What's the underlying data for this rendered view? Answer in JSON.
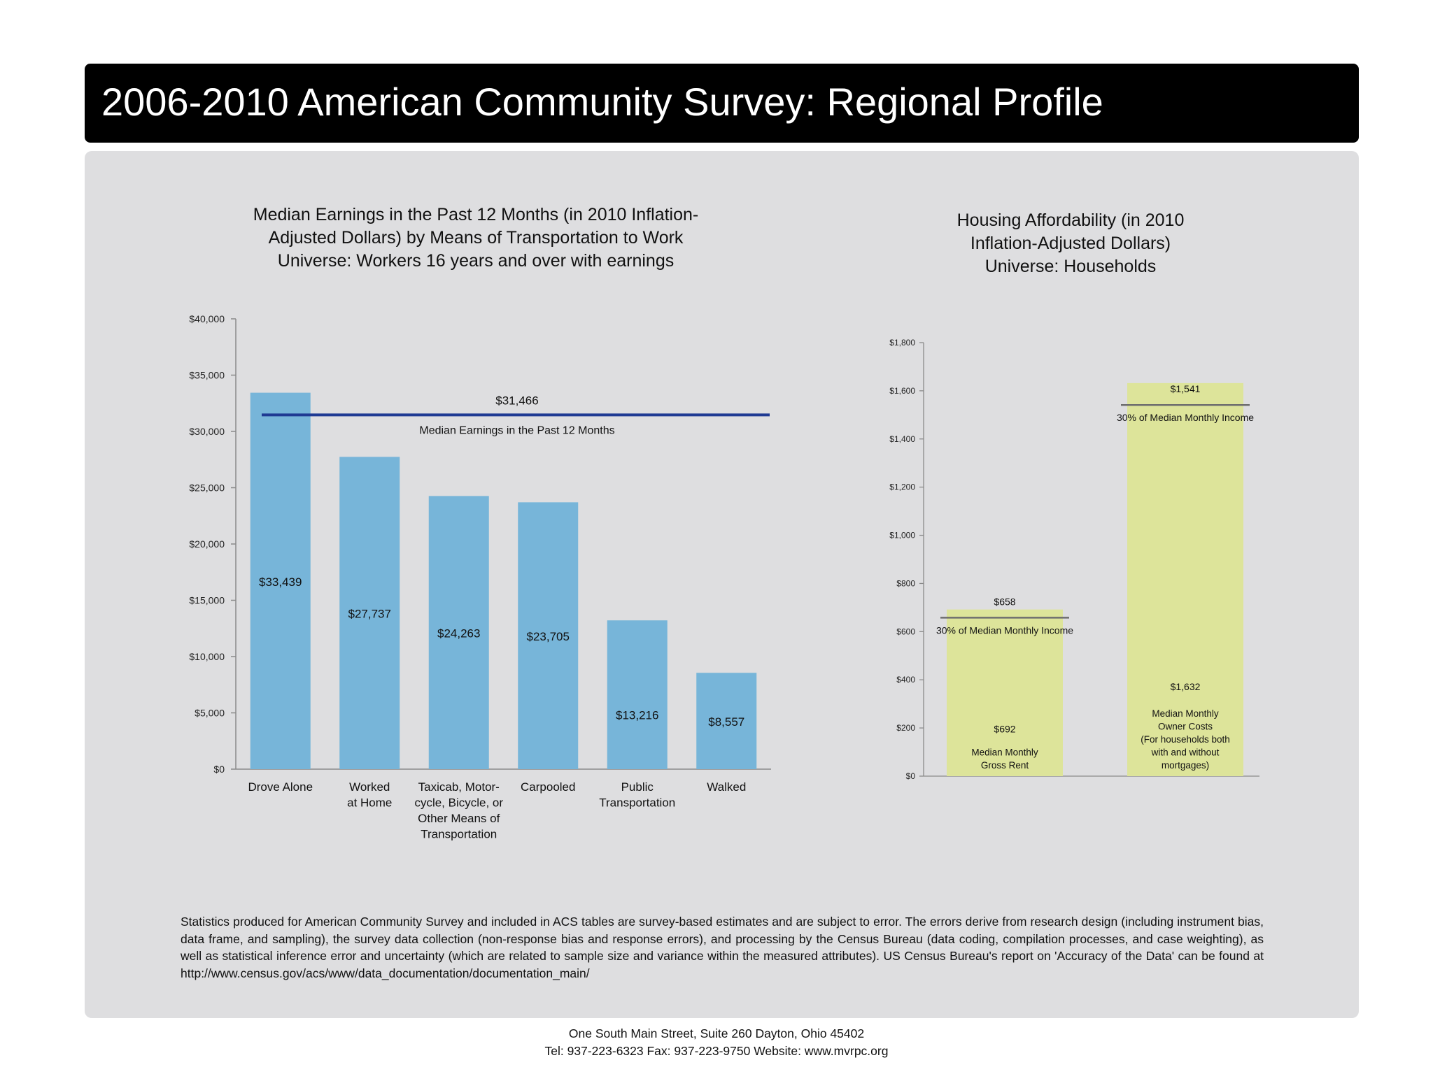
{
  "header": {
    "title": "2006-2010 American Community Survey: Regional Profile"
  },
  "chart_data": [
    {
      "type": "bar",
      "title_lines": [
        "Median Earnings in the Past 12 Months (in 2010 Inflation-",
        "Adjusted Dollars) by Means of Transportation to Work",
        "Universe: Workers 16 years and over with earnings"
      ],
      "categories": [
        [
          "Drove Alone"
        ],
        [
          "Worked",
          "at Home"
        ],
        [
          "Taxicab, Motor-",
          "cycle, Bicycle, or",
          "Other Means of",
          "Transportation"
        ],
        [
          "Carpooled"
        ],
        [
          "Public",
          "Transportation"
        ],
        [
          "Walked"
        ]
      ],
      "values": [
        33439,
        27737,
        24263,
        23705,
        13216,
        8557
      ],
      "data_labels": [
        "$33,439",
        "$27,737",
        "$24,263",
        "$23,705",
        "$13,216",
        "$8,557"
      ],
      "ylim": [
        0,
        40000
      ],
      "yticks": [
        0,
        5000,
        10000,
        15000,
        20000,
        25000,
        30000,
        35000,
        40000
      ],
      "ytick_labels": [
        "$0",
        "$5,000",
        "$10,000",
        "$15,000",
        "$20,000",
        "$25,000",
        "$30,000",
        "$35,000",
        "$40,000"
      ],
      "reference_line": {
        "value": 31466,
        "label": "$31,466",
        "caption": "Median Earnings in the Past 12 Months",
        "color": "#1f3a93"
      },
      "bar_color": "#77b5d9"
    },
    {
      "type": "bar",
      "title_lines": [
        "Housing Affordability (in 2010",
        "Inflation-Adjusted Dollars)",
        "Universe: Households"
      ],
      "values": [
        692,
        1632
      ],
      "value_labels": [
        "$692",
        "$1,632"
      ],
      "category_labels": [
        [
          "Median Monthly",
          "Gross Rent"
        ],
        [
          "Median Monthly",
          "Owner Costs",
          "(For households both",
          "with and without",
          "mortgages)"
        ]
      ],
      "thresholds": [
        {
          "value": 658,
          "label": "$658",
          "caption": "30% of Median Monthly Income"
        },
        {
          "value": 1541,
          "label": "$1,541",
          "caption": "30% of Median Monthly Income"
        }
      ],
      "ylim": [
        0,
        1800
      ],
      "yticks": [
        0,
        200,
        400,
        600,
        800,
        1000,
        1200,
        1400,
        1600,
        1800
      ],
      "ytick_labels": [
        "$0",
        "$200",
        "$400",
        "$600",
        "$800",
        "$1,000",
        "$1,200",
        "$1,400",
        "$1,600",
        "$1,800"
      ],
      "bar_color": "#dde49a",
      "threshold_color": "#6e6e6e"
    }
  ],
  "disclaimer": "Statistics produced for American Community Survey and included in ACS tables are survey-based estimates and are subject to error. The errors derive from research design (including instrument bias, data frame, and sampling), the survey data collection (non-response bias and response errors), and processing by the Census Bureau (data coding, compilation processes, and case weighting), as well as statistical inference error and uncertainty (which are related to sample size and variance within the measured attributes). US Census Bureau's report on 'Accuracy of the Data' can be found at http://www.census.gov/acs/www/data_documentation/documentation_main/",
  "footer": {
    "line1": "One South Main Street, Suite 260 Dayton, Ohio 45402",
    "line2": "Tel: 937-223-6323 Fax: 937-223-9750 Website: www.mvrpc.org"
  }
}
